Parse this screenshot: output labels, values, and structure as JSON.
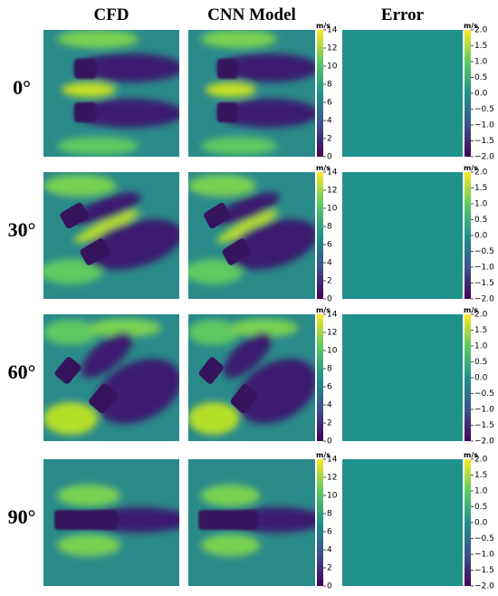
{
  "column_titles": [
    "CFD",
    "CNN Model",
    "Error"
  ],
  "row_labels": [
    "0°",
    "30°",
    "60°",
    "90°"
  ],
  "velocity_colorbar": {
    "unit": "m/s",
    "lim": [
      0,
      14
    ],
    "ticks": [
      0,
      2,
      4,
      6,
      8,
      10,
      12,
      14
    ]
  },
  "error_colorbar": {
    "unit": "m/s",
    "lim": [
      -2,
      2
    ],
    "ticks": [
      {
        "value": -2,
        "label": "−2.0"
      },
      {
        "value": -1.5,
        "label": "−1.5"
      },
      {
        "value": -1,
        "label": "−1.0"
      },
      {
        "value": -0.5,
        "label": "−0.5"
      },
      {
        "value": 0,
        "label": "0.0"
      },
      {
        "value": 0.5,
        "label": "0.5"
      },
      {
        "value": 1,
        "label": "1.0"
      },
      {
        "value": 1.5,
        "label": "1.5"
      },
      {
        "value": 2,
        "label": "2.0"
      }
    ]
  }
}
